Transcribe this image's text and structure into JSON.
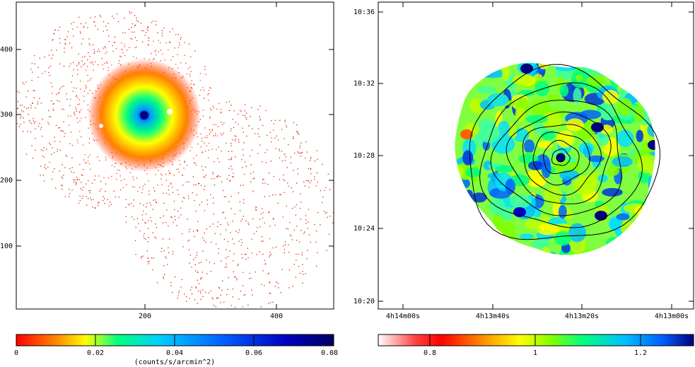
{
  "left_panel": {
    "x_ticks": [
      "200",
      "400"
    ],
    "y_ticks": [
      "100",
      "200",
      "300",
      "400"
    ],
    "colorbar": {
      "ticks": [
        "0",
        "0.02",
        "0.04",
        "0.06",
        "0.08"
      ],
      "label": "(counts/s/arcmin^2)",
      "colors": [
        "#ff0000",
        "#ff8000",
        "#ffff00",
        "#00ff80",
        "#00c0ff",
        "#0060ff",
        "#0000c0",
        "#000060"
      ]
    }
  },
  "right_panel": {
    "x_ticks": [
      "4h14m00s",
      "4h13m40s",
      "4h13m20s",
      "4h13m00s"
    ],
    "y_ticks": [
      "10:36",
      "10:32",
      "10:28",
      "10:24",
      "10:20"
    ],
    "colorbar": {
      "ticks": [
        "0.8",
        "1",
        "1.2"
      ],
      "colors": [
        "#ffffff",
        "#ff0000",
        "#ffa000",
        "#ffff00",
        "#80ff00",
        "#00ff80",
        "#00c0ff",
        "#0060ff",
        "#000080"
      ]
    }
  }
}
